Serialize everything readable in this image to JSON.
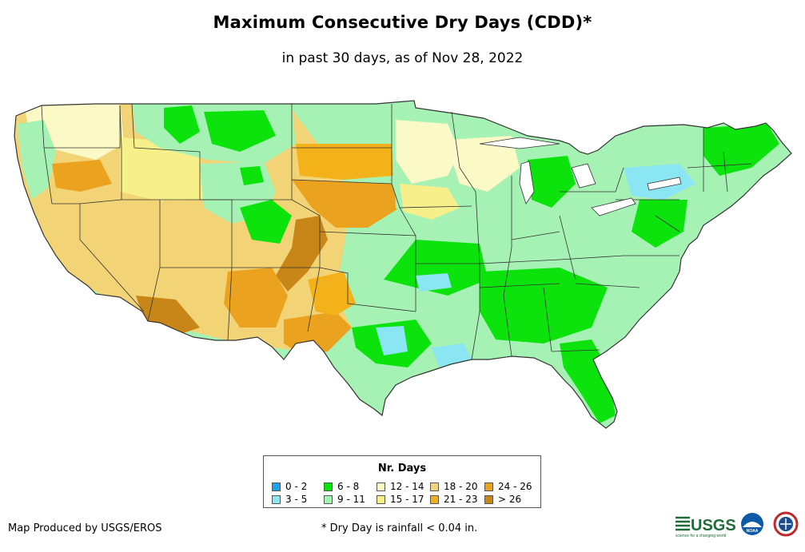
{
  "title": "Maximum Consecutive Dry Days (CDD)*",
  "subtitle": "in past 30 days, as of Nov 28, 2022",
  "legend": {
    "title": "Nr. Days",
    "items": [
      {
        "label": "0 - 2",
        "color": "#1aa3f0"
      },
      {
        "label": "3 - 5",
        "color": "#8ae6f2"
      },
      {
        "label": "6 - 8",
        "color": "#0ce30c"
      },
      {
        "label": "9 - 11",
        "color": "#a6f2b4"
      },
      {
        "label": "12 - 14",
        "color": "#fbf9c5"
      },
      {
        "label": "15 - 17",
        "color": "#f6ef8a"
      },
      {
        "label": "18 - 20",
        "color": "#f2d477"
      },
      {
        "label": "21 - 23",
        "color": "#f4b21a"
      },
      {
        "label": "24 - 26",
        "color": "#eba21e"
      },
      {
        "label": "> 26",
        "color": "#c98618"
      }
    ]
  },
  "credit": "Map Produced by USGS/EROS",
  "footnote": "* Dry Day is rainfall < 0.04 in.",
  "logos": {
    "usgs_text": "USGS",
    "usgs_tagline": "science for a changing world",
    "noaa_text": "NOAA"
  }
}
